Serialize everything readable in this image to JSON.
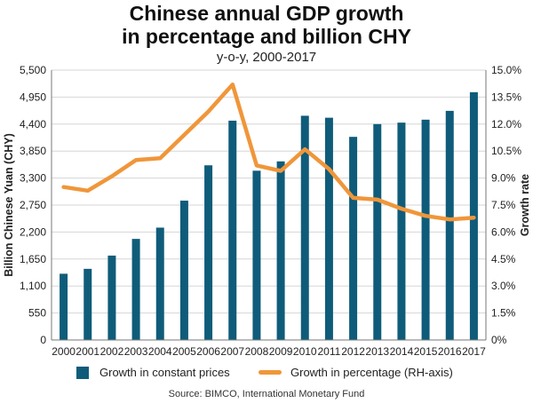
{
  "header": {
    "title_line1": "Chinese annual GDP growth",
    "title_line2": "in percentage and billion CHY",
    "subtitle": "y-o-y, 2000-2017"
  },
  "colors": {
    "bar": "#0f5c7a",
    "line": "#f0963a",
    "grid": "#d6d6d6"
  },
  "legend": {
    "bar_label": "Growth in constant prices",
    "line_label": "Growth in percentage (RH-axis)"
  },
  "source": "Source: BIMCO, International Monetary Fund",
  "chart_data": {
    "type": "bar",
    "categories": [
      "2000",
      "2001",
      "2002",
      "2003",
      "2004",
      "2005",
      "2006",
      "2007",
      "2008",
      "2009",
      "2010",
      "2011",
      "2012",
      "2013",
      "2014",
      "2015",
      "2016",
      "2017"
    ],
    "series": [
      {
        "name": "Growth in constant prices",
        "type": "bar",
        "axis": "left",
        "values": [
          1350,
          1450,
          1720,
          2060,
          2290,
          2840,
          3560,
          4470,
          3450,
          3640,
          4570,
          4530,
          4140,
          4400,
          4430,
          4490,
          4670,
          5050
        ]
      },
      {
        "name": "Growth in percentage (RH-axis)",
        "type": "line",
        "axis": "right",
        "values": [
          8.5,
          8.3,
          9.1,
          10.0,
          10.1,
          11.4,
          12.7,
          14.2,
          9.7,
          9.4,
          10.6,
          9.5,
          7.9,
          7.8,
          7.3,
          6.9,
          6.7,
          6.8
        ]
      }
    ],
    "ylabel": "Billion Chinese Yuan (CHY)",
    "y2label": "Growth rate",
    "ylim": [
      0,
      5500
    ],
    "y2lim": [
      0,
      15
    ],
    "yticks": [
      "0",
      "550",
      "1,100",
      "1,650",
      "2,200",
      "2,750",
      "3,300",
      "3,850",
      "4,400",
      "4,950",
      "5,500"
    ],
    "y2ticks": [
      "0%",
      "1.5%",
      "3.0%",
      "4.5%",
      "6.0%",
      "7.5%",
      "9.0%",
      "10.5%",
      "12.0%",
      "13.5%",
      "15.0%"
    ],
    "grid": true,
    "legend_position": "bottom"
  }
}
